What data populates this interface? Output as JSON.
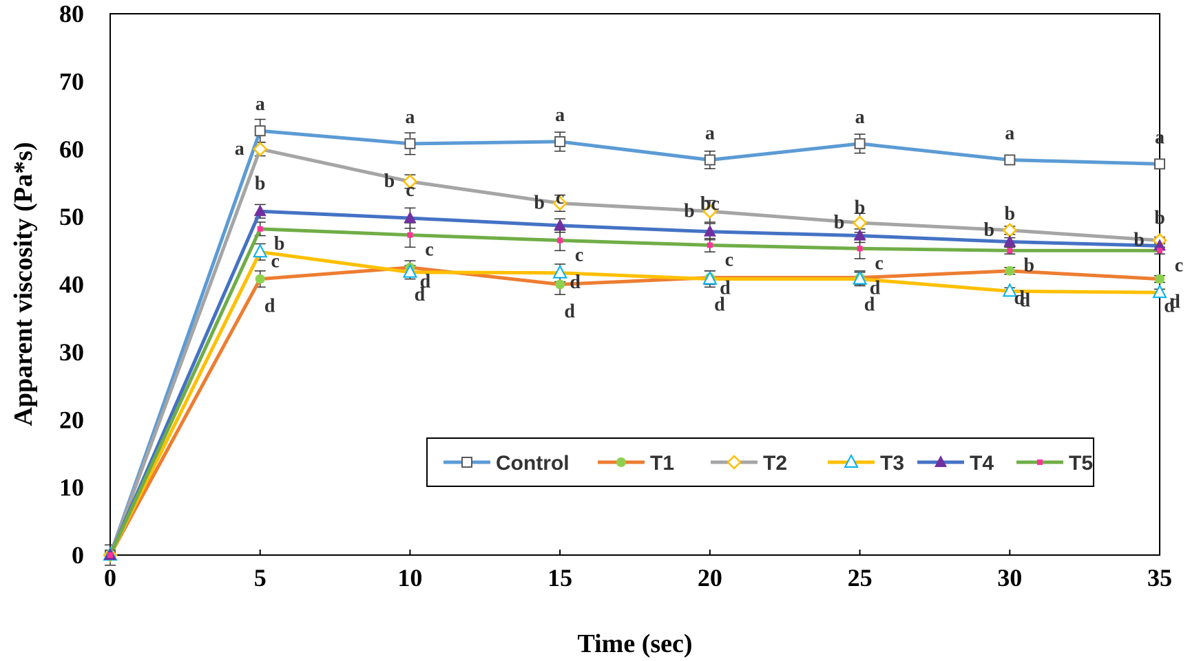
{
  "chart_data": {
    "type": "line",
    "title": "",
    "xlabel": "Time (sec)",
    "ylabel": "Apparent viscosity  (Pa*s)",
    "x": [
      0,
      5,
      10,
      15,
      20,
      25,
      30,
      35
    ],
    "xticks": [
      "0",
      "5",
      "10",
      "15",
      "20",
      "25",
      "30",
      "35"
    ],
    "yticks": [
      "0",
      "10",
      "20",
      "30",
      "40",
      "50",
      "60",
      "70",
      "80"
    ],
    "xlim": [
      0,
      35
    ],
    "ylim": [
      0,
      80
    ],
    "grid": false,
    "legend_position": "bottom-right",
    "series": [
      {
        "name": "Control",
        "color": "#5B9BD5",
        "marker": "open-square",
        "values": [
          0,
          62.7,
          60.8,
          61.1,
          58.4,
          60.8,
          58.4,
          57.8
        ],
        "errors": [
          1.5,
          1.7,
          1.6,
          1.4,
          1.3,
          1.4,
          0.6,
          0.5
        ],
        "labels": [
          "",
          "a",
          "a",
          "a",
          "a",
          "a",
          "a",
          "a"
        ]
      },
      {
        "name": "T1",
        "color": "#ED7D31",
        "marker": "filled-circle",
        "values": [
          0,
          40.8,
          42.5,
          40.0,
          41.0,
          41.0,
          42.0,
          40.8
        ],
        "errors": [
          0,
          1.2,
          1.0,
          1.5,
          1.0,
          1.0,
          0.5,
          0.5
        ],
        "labels": [
          "",
          "d",
          "d",
          "d",
          "d",
          "d",
          "d",
          "d"
        ]
      },
      {
        "name": "T2",
        "color": "#A5A5A5",
        "marker": "open-diamond",
        "values": [
          0,
          60.0,
          55.2,
          52.0,
          50.8,
          49.1,
          48.0,
          46.5
        ],
        "errors": [
          0,
          1.0,
          1.0,
          1.2,
          1.6,
          1.4,
          0.6,
          0.5
        ],
        "labels": [
          "",
          "a",
          "b",
          "b",
          "b",
          "b",
          "b",
          "b"
        ]
      },
      {
        "name": "T3",
        "color": "#FFC000",
        "marker": "open-triangle",
        "values": [
          0,
          44.8,
          41.8,
          41.7,
          40.8,
          40.8,
          39.0,
          38.8
        ],
        "errors": [
          0,
          1.2,
          1.0,
          1.3,
          1.2,
          1.0,
          0.5,
          0.5
        ],
        "labels": [
          "",
          "c",
          "d",
          "d",
          "d",
          "d",
          "d",
          "d"
        ]
      },
      {
        "name": "T4",
        "color": "#4472C4",
        "marker": "filled-triangle",
        "values": [
          0,
          50.8,
          49.8,
          48.7,
          47.8,
          47.2,
          46.3,
          45.7
        ],
        "errors": [
          0,
          1.0,
          1.5,
          1.0,
          1.2,
          1.0,
          0.6,
          0.5
        ],
        "labels": [
          "",
          "b",
          "c",
          "c",
          "bc",
          "b",
          "b",
          "b"
        ]
      },
      {
        "name": "T5",
        "color": "#70AD47",
        "marker": "small-square",
        "values": [
          0,
          48.2,
          47.3,
          46.5,
          45.8,
          45.3,
          45.0,
          45.0
        ],
        "errors": [
          0,
          1.0,
          1.8,
          1.5,
          1.0,
          1.5,
          0.5,
          0.5
        ],
        "labels": [
          "",
          "b",
          "c",
          "c",
          "c",
          "c",
          "b",
          "c"
        ]
      }
    ]
  }
}
